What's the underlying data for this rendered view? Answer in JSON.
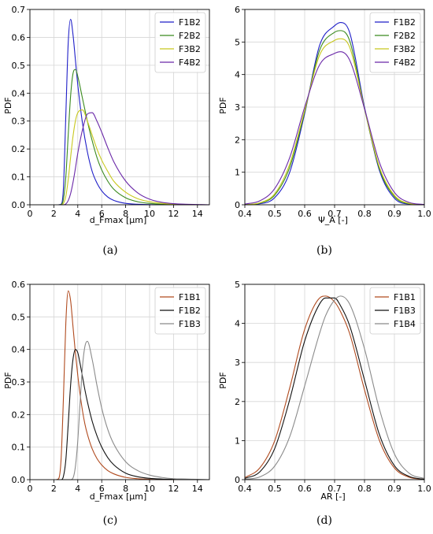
{
  "chart_data": [
    {
      "type": "line",
      "panel": "(a)",
      "xlabel": "d_Fmax [µm]",
      "ylabel": "PDF",
      "xlim": [
        0,
        15
      ],
      "ylim": [
        0,
        0.7
      ],
      "xticks": [
        "0",
        "2",
        "4",
        "6",
        "8",
        "10",
        "12",
        "14"
      ],
      "yticks": [
        "0.0",
        "0.1",
        "0.2",
        "0.3",
        "0.4",
        "0.5",
        "0.6",
        "0.7"
      ],
      "grid": true,
      "legend": "top-right",
      "x": [
        2.4,
        2.6,
        2.8,
        3.0,
        3.2,
        3.4,
        3.6,
        3.8,
        4.0,
        4.4,
        4.8,
        5.2,
        5.6,
        6.0,
        6.5,
        7.0,
        8.0,
        9.0,
        10.0,
        11.0,
        12.0,
        13.0,
        14.0,
        15.0
      ],
      "series": [
        {
          "name": "F1B2",
          "color": "#1f1fc8",
          "values": [
            0,
            0.002,
            0.06,
            0.32,
            0.58,
            0.665,
            0.61,
            0.52,
            0.43,
            0.29,
            0.19,
            0.12,
            0.078,
            0.05,
            0.028,
            0.016,
            0.005,
            0.002,
            0.0006,
            0.0002,
            0,
            0,
            0,
            0
          ]
        },
        {
          "name": "F2B2",
          "color": "#3a8a1e",
          "values": [
            0,
            0.001,
            0.02,
            0.1,
            0.25,
            0.39,
            0.47,
            0.485,
            0.46,
            0.38,
            0.3,
            0.23,
            0.17,
            0.125,
            0.085,
            0.056,
            0.025,
            0.011,
            0.005,
            0.002,
            0.001,
            0,
            0,
            0
          ]
        },
        {
          "name": "F3B2",
          "color": "#c8c81e",
          "values": [
            0,
            0,
            0.005,
            0.03,
            0.09,
            0.17,
            0.245,
            0.3,
            0.33,
            0.34,
            0.3,
            0.25,
            0.2,
            0.16,
            0.12,
            0.085,
            0.045,
            0.022,
            0.011,
            0.005,
            0.002,
            0.001,
            0,
            0
          ]
        },
        {
          "name": "F4B2",
          "color": "#6a28a8",
          "values": [
            0,
            0,
            0,
            0.003,
            0.015,
            0.04,
            0.08,
            0.13,
            0.185,
            0.27,
            0.325,
            0.33,
            0.3,
            0.26,
            0.205,
            0.155,
            0.085,
            0.043,
            0.02,
            0.009,
            0.004,
            0.002,
            0.001,
            0
          ]
        }
      ]
    },
    {
      "type": "line",
      "panel": "(b)",
      "xlabel": "Ψ_A [-]",
      "ylabel": "PDF",
      "xlim": [
        0.4,
        1.0
      ],
      "ylim": [
        0,
        6
      ],
      "xticks": [
        "0.4",
        "0.5",
        "0.6",
        "0.7",
        "0.8",
        "0.9",
        "1.0"
      ],
      "yticks": [
        "0",
        "1",
        "2",
        "3",
        "4",
        "5",
        "6"
      ],
      "grid": true,
      "legend": "top-right",
      "x": [
        0.4,
        0.45,
        0.5,
        0.55,
        0.6,
        0.65,
        0.7,
        0.72,
        0.75,
        0.8,
        0.85,
        0.9,
        0.95,
        1.0
      ],
      "series": [
        {
          "name": "F1B2",
          "color": "#1f1fc8",
          "values": [
            0.0,
            0.03,
            0.22,
            1.0,
            2.8,
            4.9,
            5.5,
            5.6,
            5.3,
            3.0,
            1.05,
            0.2,
            0.02,
            0.0
          ]
        },
        {
          "name": "F2B2",
          "color": "#3a8a1e",
          "values": [
            0.0,
            0.05,
            0.3,
            1.15,
            2.85,
            4.75,
            5.3,
            5.35,
            5.05,
            2.95,
            1.1,
            0.25,
            0.03,
            0.0
          ]
        },
        {
          "name": "F3B2",
          "color": "#c8c81e",
          "values": [
            0.0,
            0.06,
            0.34,
            1.25,
            2.9,
            4.6,
            5.05,
            5.1,
            4.85,
            2.95,
            1.15,
            0.29,
            0.04,
            0.0
          ]
        },
        {
          "name": "F4B2",
          "color": "#6a28a8",
          "values": [
            0.02,
            0.12,
            0.5,
            1.45,
            3.0,
            4.3,
            4.65,
            4.7,
            4.45,
            2.95,
            1.3,
            0.38,
            0.07,
            0.01
          ]
        }
      ]
    },
    {
      "type": "line",
      "panel": "(c)",
      "xlabel": "d_Fmax [µm]",
      "ylabel": "PDF",
      "xlim": [
        0,
        15
      ],
      "ylim": [
        0,
        0.6
      ],
      "xticks": [
        "0",
        "2",
        "4",
        "6",
        "8",
        "10",
        "12",
        "14"
      ],
      "yticks": [
        "0.0",
        "0.1",
        "0.2",
        "0.3",
        "0.4",
        "0.5",
        "0.6"
      ],
      "grid": true,
      "legend": "top-right",
      "x": [
        2.2,
        2.4,
        2.6,
        2.8,
        3.0,
        3.2,
        3.4,
        3.6,
        3.8,
        4.0,
        4.2,
        4.4,
        4.6,
        4.8,
        5.2,
        5.6,
        6.0,
        6.5,
        7.0,
        8.0,
        9.0,
        10.0,
        11.0,
        12.0,
        13.0,
        14.0,
        15.0
      ],
      "series": [
        {
          "name": "F1B1",
          "color": "#b04a1e",
          "values": [
            0,
            0.003,
            0.06,
            0.25,
            0.48,
            0.58,
            0.55,
            0.47,
            0.39,
            0.32,
            0.26,
            0.21,
            0.17,
            0.14,
            0.095,
            0.065,
            0.045,
            0.028,
            0.018,
            0.007,
            0.003,
            0.001,
            0,
            0,
            0,
            0,
            0
          ]
        },
        {
          "name": "F1B2",
          "color": "#111111",
          "values": [
            0,
            0,
            0,
            0.01,
            0.06,
            0.17,
            0.29,
            0.37,
            0.4,
            0.39,
            0.355,
            0.315,
            0.275,
            0.24,
            0.18,
            0.135,
            0.1,
            0.068,
            0.046,
            0.02,
            0.009,
            0.004,
            0.002,
            0.001,
            0,
            0,
            0
          ]
        },
        {
          "name": "F1B3",
          "color": "#8a8a8a",
          "values": [
            0,
            0,
            0,
            0,
            0,
            0,
            0,
            0.005,
            0.04,
            0.12,
            0.24,
            0.35,
            0.41,
            0.425,
            0.37,
            0.29,
            0.22,
            0.155,
            0.11,
            0.055,
            0.028,
            0.014,
            0.007,
            0.003,
            0.002,
            0.001,
            0
          ]
        }
      ]
    },
    {
      "type": "line",
      "panel": "(d)",
      "xlabel": "AR [-]",
      "ylabel": "PDF",
      "xlim": [
        0.4,
        1.0
      ],
      "ylim": [
        0,
        5
      ],
      "xticks": [
        "0.4",
        "0.5",
        "0.6",
        "0.7",
        "0.8",
        "0.9",
        "1.0"
      ],
      "yticks": [
        "0",
        "1",
        "2",
        "3",
        "4",
        "5"
      ],
      "grid": true,
      "legend": "top-right",
      "x": [
        0.4,
        0.45,
        0.5,
        0.55,
        0.6,
        0.65,
        0.67,
        0.7,
        0.72,
        0.75,
        0.8,
        0.85,
        0.9,
        0.95,
        1.0
      ],
      "series": [
        {
          "name": "F1B1",
          "color": "#b04a1e",
          "values": [
            0.05,
            0.3,
            1.0,
            2.35,
            3.85,
            4.65,
            4.7,
            4.55,
            4.3,
            3.75,
            2.3,
            1.0,
            0.3,
            0.06,
            0.01
          ]
        },
        {
          "name": "F1B3",
          "color": "#111111",
          "values": [
            0.03,
            0.2,
            0.8,
            2.05,
            3.55,
            4.5,
            4.65,
            4.65,
            4.45,
            3.95,
            2.55,
            1.15,
            0.36,
            0.08,
            0.01
          ]
        },
        {
          "name": "F1B4",
          "color": "#8a8a8a",
          "values": [
            0.01,
            0.07,
            0.35,
            1.1,
            2.4,
            3.75,
            4.2,
            4.6,
            4.7,
            4.5,
            3.35,
            1.8,
            0.66,
            0.16,
            0.03
          ]
        }
      ]
    }
  ],
  "captions": [
    "(a)",
    "(b)",
    "(c)",
    "(d)"
  ]
}
